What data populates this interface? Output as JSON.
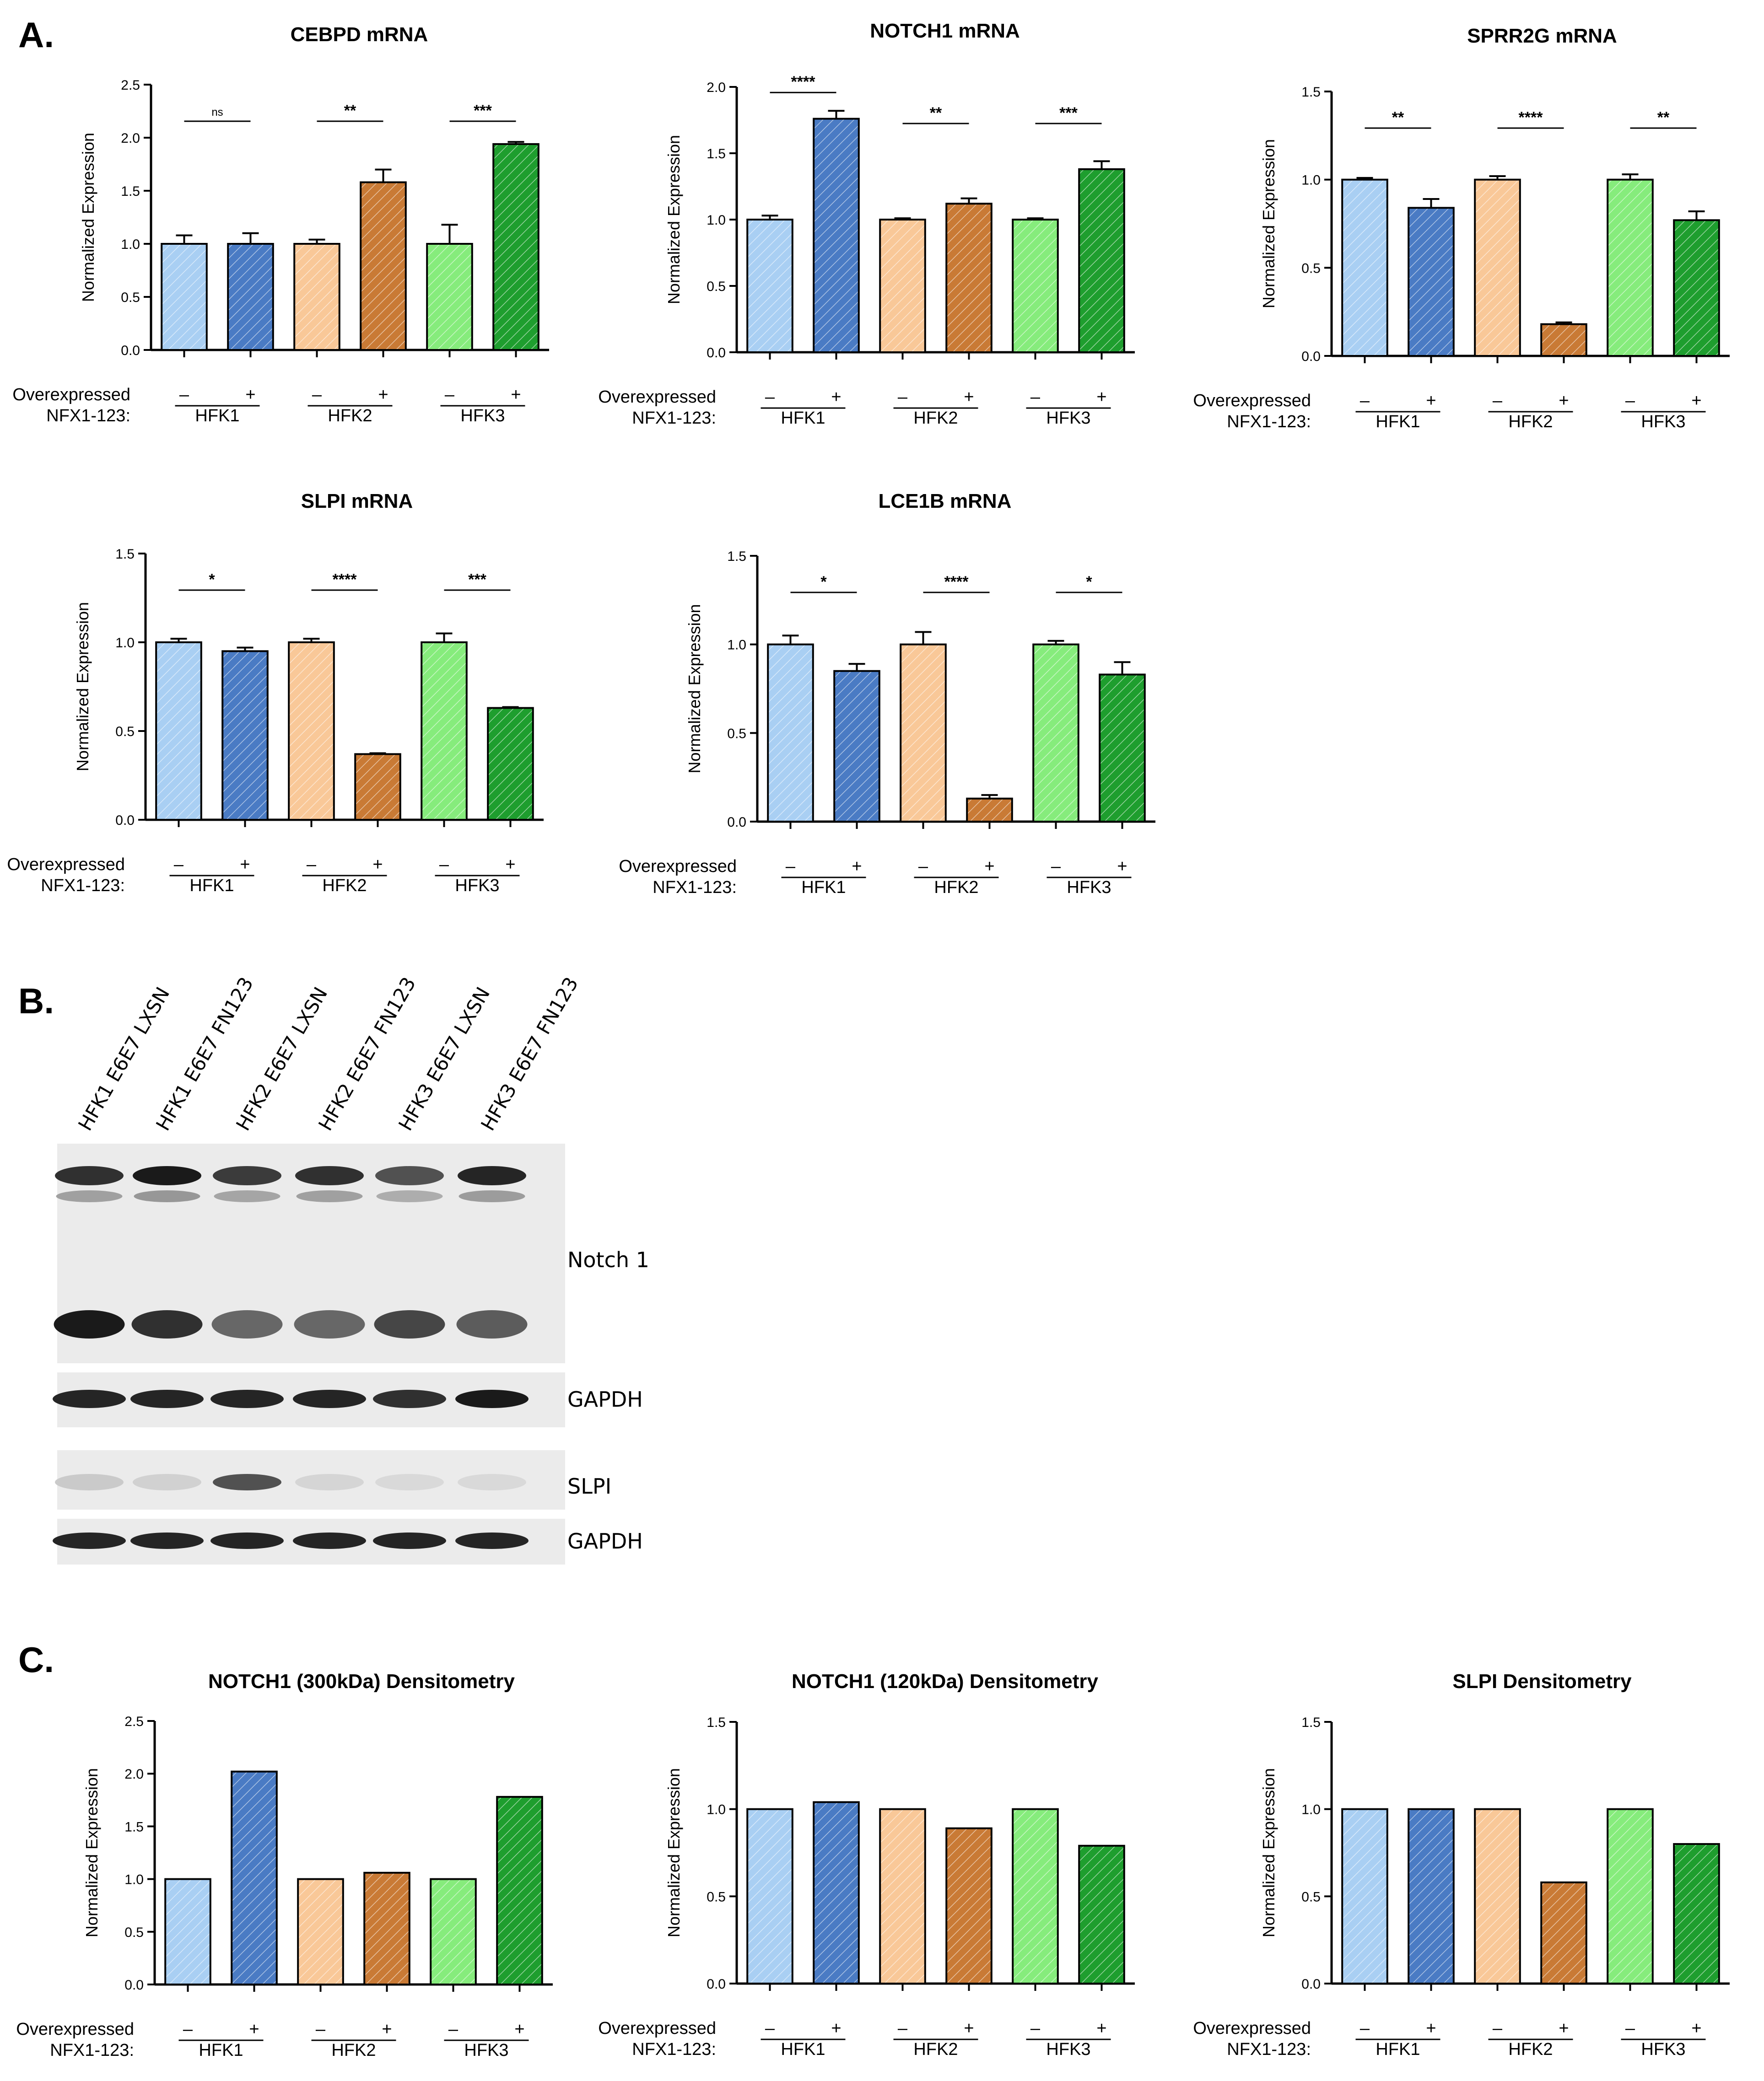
{
  "figure": {
    "panels": [
      {
        "key": "A",
        "label": "A."
      },
      {
        "key": "B",
        "label": "B."
      },
      {
        "key": "C",
        "label": "C."
      }
    ],
    "colors": {
      "hfk1_light": "#A9CFF3",
      "hfk1_dark": "#4A7BC4",
      "hfk2_light": "#F9C898",
      "hfk2_dark": "#C97A35",
      "hfk3_light": "#86EC7C",
      "hfk3_dark": "#1E9E2E"
    },
    "xaxis_labels": {
      "row_title_line1": "Overexpressed",
      "row_title_line2": "NFX1-123:",
      "minus": "–",
      "plus": "+"
    }
  },
  "chart_data": [
    {
      "type": "bar",
      "title": "CEBPD mRNA",
      "ylabel": "Normalized Expression",
      "ylim": [
        0,
        2.5
      ],
      "yticks": [
        "0.0",
        "0.5",
        "1.0",
        "1.5",
        "2.0",
        "2.5"
      ],
      "ytick_values": [
        0,
        0.5,
        1,
        1.5,
        2,
        2.5
      ],
      "groups": [
        "HFK1",
        "HFK2",
        "HFK3"
      ],
      "values": [
        1.0,
        1.0,
        1.0,
        1.58,
        1.0,
        1.94
      ],
      "errors": [
        0.08,
        0.1,
        0.04,
        0.12,
        0.18,
        0.02
      ],
      "significance": [
        "ns",
        "**",
        "***"
      ]
    },
    {
      "type": "bar",
      "title": "NOTCH1 mRNA",
      "ylabel": "Normalized Expression",
      "ylim": [
        0,
        2.0
      ],
      "yticks": [
        "0.0",
        "0.5",
        "1.0",
        "1.5",
        "2.0"
      ],
      "ytick_values": [
        0,
        0.5,
        1,
        1.5,
        2
      ],
      "groups": [
        "HFK1",
        "HFK2",
        "HFK3"
      ],
      "values": [
        1.0,
        1.76,
        1.0,
        1.12,
        1.0,
        1.38
      ],
      "errors": [
        0.03,
        0.06,
        0.01,
        0.04,
        0.01,
        0.06
      ],
      "significance": [
        "****",
        "**",
        "***"
      ]
    },
    {
      "type": "bar",
      "title": "SPRR2G mRNA",
      "ylabel": "Normalized Expression",
      "ylim": [
        0,
        1.5
      ],
      "yticks": [
        "0.0",
        "0.5",
        "1.0",
        "1.5"
      ],
      "ytick_values": [
        0,
        0.5,
        1,
        1.5
      ],
      "groups": [
        "HFK1",
        "HFK2",
        "HFK3"
      ],
      "values": [
        1.0,
        0.84,
        1.0,
        0.18,
        1.0,
        0.77
      ],
      "errors": [
        0.01,
        0.05,
        0.02,
        0.01,
        0.03,
        0.05
      ],
      "significance": [
        "**",
        "****",
        "**"
      ]
    },
    {
      "type": "bar",
      "title": "SLPI mRNA",
      "ylabel": "Normalized Expression",
      "ylim": [
        0,
        1.5
      ],
      "yticks": [
        "0.0",
        "0.5",
        "1.0",
        "1.5"
      ],
      "ytick_values": [
        0,
        0.5,
        1,
        1.5
      ],
      "groups": [
        "HFK1",
        "HFK2",
        "HFK3"
      ],
      "values": [
        1.0,
        0.95,
        1.0,
        0.37,
        1.0,
        0.63
      ],
      "errors": [
        0.02,
        0.02,
        0.02,
        0.005,
        0.05,
        0.005
      ],
      "significance": [
        "*",
        "****",
        "***"
      ]
    },
    {
      "type": "bar",
      "title": "LCE1B mRNA",
      "ylabel": "Normalized Expression",
      "ylim": [
        0,
        1.5
      ],
      "yticks": [
        "0.0",
        "0.5",
        "1.0",
        "1.5"
      ],
      "ytick_values": [
        0,
        0.5,
        1,
        1.5
      ],
      "groups": [
        "HFK1",
        "HFK2",
        "HFK3"
      ],
      "values": [
        1.0,
        0.85,
        1.0,
        0.13,
        1.0,
        0.83
      ],
      "errors": [
        0.05,
        0.04,
        0.07,
        0.02,
        0.02,
        0.07
      ],
      "significance": [
        "*",
        "****",
        "*"
      ]
    },
    {
      "type": "bar",
      "title": "NOTCH1 (300kDa) Densitometry",
      "ylabel": "Normalized Expression",
      "ylim": [
        0,
        2.5
      ],
      "yticks": [
        "0.0",
        "0.5",
        "1.0",
        "1.5",
        "2.0",
        "2.5"
      ],
      "ytick_values": [
        0,
        0.5,
        1,
        1.5,
        2,
        2.5
      ],
      "groups": [
        "HFK1",
        "HFK2",
        "HFK3"
      ],
      "values": [
        1.0,
        2.02,
        1.0,
        1.06,
        1.0,
        1.78
      ],
      "errors": [],
      "significance": []
    },
    {
      "type": "bar",
      "title": "NOTCH1 (120kDa) Densitometry",
      "ylabel": "Normalized Expression",
      "ylim": [
        0,
        1.5
      ],
      "yticks": [
        "0.0",
        "0.5",
        "1.0",
        "1.5"
      ],
      "ytick_values": [
        0,
        0.5,
        1,
        1.5
      ],
      "groups": [
        "HFK1",
        "HFK2",
        "HFK3"
      ],
      "values": [
        1.0,
        1.04,
        1.0,
        0.89,
        1.0,
        0.79
      ],
      "errors": [],
      "significance": []
    },
    {
      "type": "bar",
      "title": "SLPI Densitometry",
      "ylabel": "Normalized Expression",
      "ylim": [
        0,
        1.5
      ],
      "yticks": [
        "0.0",
        "0.5",
        "1.0",
        "1.5"
      ],
      "ytick_values": [
        0,
        0.5,
        1,
        1.5
      ],
      "groups": [
        "HFK1",
        "HFK2",
        "HFK3"
      ],
      "values": [
        1.0,
        1.0,
        1.0,
        0.58,
        1.0,
        0.8
      ],
      "errors": [],
      "significance": []
    }
  ],
  "western_blot": {
    "lanes": [
      "HFK1 E6E7 LXSN",
      "HFK1 E6E7 FN123",
      "HFK2 E6E7 LXSN",
      "HFK2 E6E7 FN123",
      "HFK3 E6E7 LXSN",
      "HFK3 E6E7 FN123"
    ],
    "blots": [
      {
        "label": "Notch 1",
        "band_intensity_upper": [
          0.85,
          0.95,
          0.8,
          0.85,
          0.7,
          0.9
        ],
        "band_intensity_lower": [
          0.95,
          0.85,
          0.6,
          0.6,
          0.75,
          0.65
        ]
      },
      {
        "label": "GAPDH",
        "band_intensity": [
          0.9,
          0.9,
          0.9,
          0.9,
          0.85,
          0.95
        ]
      },
      {
        "label": "SLPI",
        "band_intensity": [
          0.15,
          0.12,
          0.7,
          0.1,
          0.08,
          0.08
        ]
      },
      {
        "label": "GAPDH",
        "band_intensity": [
          0.9,
          0.9,
          0.9,
          0.9,
          0.9,
          0.9
        ]
      }
    ]
  }
}
